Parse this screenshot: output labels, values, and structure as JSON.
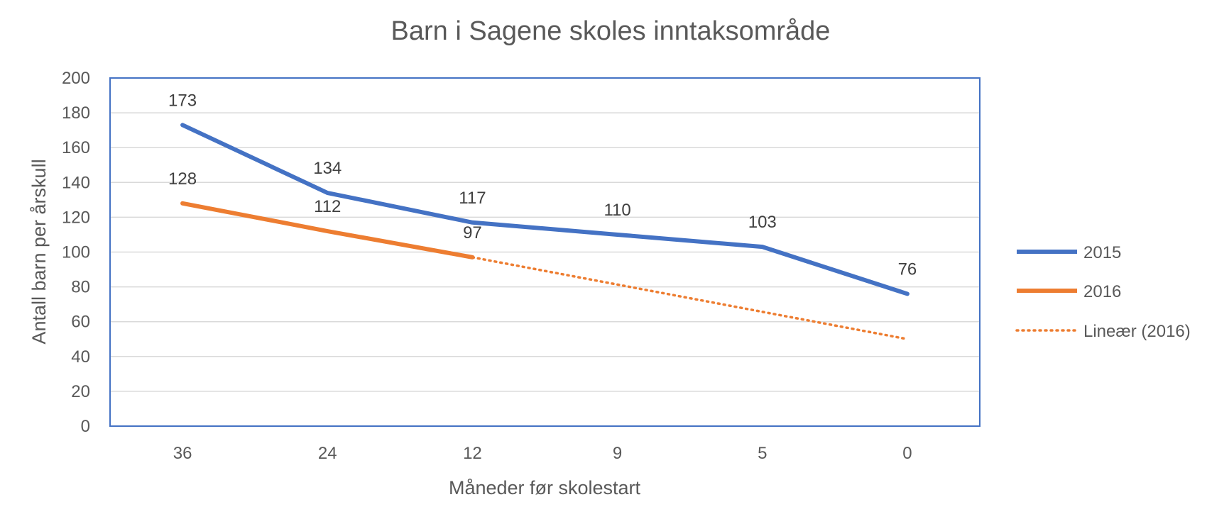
{
  "chart_data": {
    "type": "line",
    "title": "Barn i Sagene skoles inntaksområde",
    "xlabel": "Måneder før skolestart",
    "ylabel": "Antall barn per årskull",
    "categories": [
      "36",
      "24",
      "12",
      "9",
      "5",
      "0"
    ],
    "ylim": [
      0,
      200
    ],
    "yticks": [
      0,
      20,
      40,
      60,
      80,
      100,
      120,
      140,
      160,
      180,
      200
    ],
    "grid": true,
    "legend_position": "right",
    "series": [
      {
        "name": "2015",
        "values": [
          173,
          134,
          117,
          110,
          103,
          76
        ],
        "color": "#4472C4",
        "labels": [
          "173",
          "134",
          "117",
          "110",
          "103",
          "76"
        ]
      },
      {
        "name": "2016",
        "values": [
          128,
          112,
          97,
          null,
          null,
          null
        ],
        "color": "#ED7D31",
        "labels": [
          "128",
          "112",
          "97"
        ]
      }
    ],
    "trendline": {
      "name": "Lineær (2016)",
      "of_series": "2016",
      "color": "#ED7D31",
      "style": "dotted",
      "start": 97,
      "end": 50
    }
  }
}
